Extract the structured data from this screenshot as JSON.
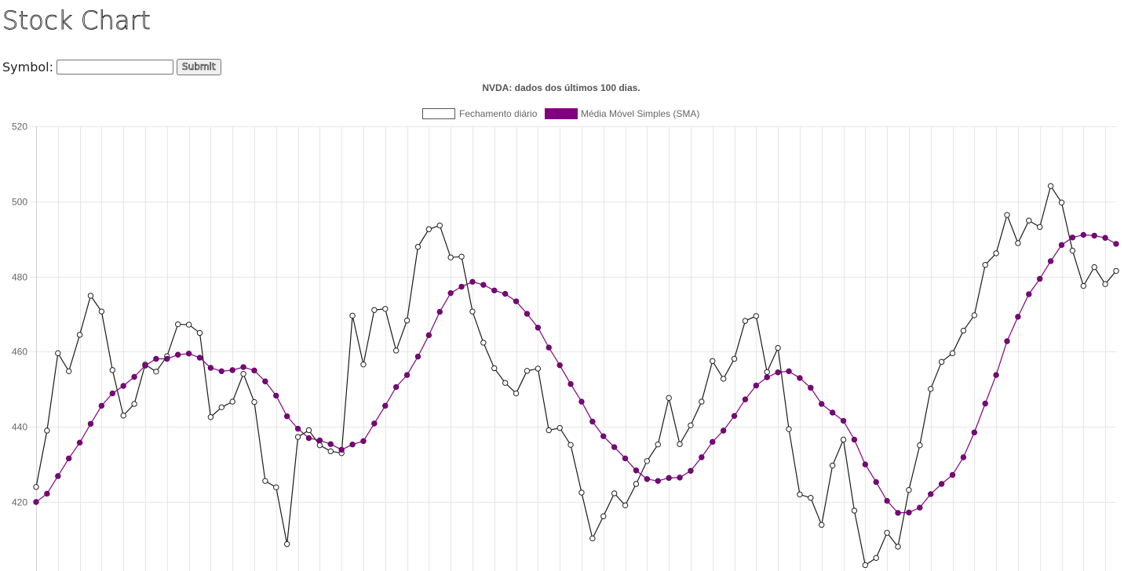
{
  "page": {
    "title": "Stock Chart",
    "form": {
      "symbol_label": "Symbol:",
      "symbol_value": "",
      "symbol_placeholder": "",
      "submit_label": "Submit"
    }
  },
  "chart_data": {
    "type": "line",
    "title": "NVDA: dados dos últimos 100 dias.",
    "legend_position": "top",
    "grid": true,
    "xlabel": "",
    "ylabel": "",
    "ylim": [
      403,
      520
    ],
    "yticks": [
      420,
      440,
      460,
      480,
      500,
      520
    ],
    "points_count": 100,
    "series": [
      {
        "name": "Fechamento diário",
        "line_color": "#1a1a1a",
        "point_fill": "#ffffff",
        "values": [
          424,
          439,
          459.6,
          454.8,
          464.5,
          474.9,
          470.7,
          455.1,
          443,
          446.1,
          456.6,
          454.7,
          458.8,
          467.3,
          467.2,
          465,
          442.6,
          445.2,
          446.7,
          454.1,
          446.6,
          425.6,
          423.9,
          408.8,
          437.3,
          439.1,
          435.1,
          433.5,
          433,
          469.6,
          456.6,
          471.1,
          471.4,
          460.3,
          468.3,
          487.9,
          492.6,
          493.6,
          485.1,
          485.3,
          470.7,
          462.4,
          455.6,
          451.7,
          448.9,
          454.9,
          455.5,
          439.1,
          439.7,
          435.2,
          422.5,
          410.3,
          416.2,
          422.3,
          419.1,
          424.8,
          430.9,
          435.3,
          447.7,
          435.4,
          440.4,
          446.7,
          457.5,
          452.8,
          458.1,
          468.2,
          469.5,
          454.6,
          461,
          439.4,
          422,
          421.1,
          413.9,
          429.7,
          436.6,
          417.7,
          403.2,
          405.1,
          411.8,
          408.1,
          423.2,
          435.1,
          450.1,
          457.3,
          459.6,
          465.6,
          469.7,
          483.1,
          486.2,
          496.4,
          488.9,
          494.9,
          493.2,
          504.1,
          499.7,
          486.9,
          477.5,
          482.5,
          478,
          481.5
        ]
      },
      {
        "name": "Média Móvel Simples (SMA)",
        "line_color": "#800080",
        "point_fill": "#800080",
        "values": [
          420,
          422.2,
          426.9,
          431.6,
          435.8,
          440.8,
          445.6,
          448.9,
          450.9,
          453.3,
          456.3,
          458.1,
          458.1,
          459.2,
          459.5,
          458.4,
          455.7,
          454.8,
          455.1,
          455.9,
          455,
          452.1,
          448.3,
          442.8,
          439.5,
          437,
          436.4,
          435.4,
          433.9,
          435.3,
          436.2,
          440.9,
          445.6,
          450.6,
          453.8,
          458.7,
          464.4,
          470.6,
          475.6,
          477.3,
          478.6,
          477.8,
          476.3,
          475.4,
          473.4,
          470.1,
          466.4,
          461.1,
          456.4,
          451.4,
          446.7,
          441.4,
          437.5,
          434.6,
          431.6,
          428.4,
          426.1,
          425.6,
          426.4,
          426.5,
          428.3,
          431.9,
          436,
          439,
          442.9,
          447.3,
          451,
          453.2,
          454.5,
          454.8,
          453,
          450.4,
          446.1,
          443.8,
          441.6,
          436.6,
          430,
          425.3,
          420.3,
          417.1,
          417.2,
          418.5,
          422.1,
          424.8,
          427.2,
          431.9,
          438.5,
          446.2,
          453.8,
          462.8,
          469.3,
          475.3,
          479.4,
          484.1,
          488.4,
          490.4,
          491.1,
          490.9,
          490.3,
          488.7
        ]
      }
    ]
  }
}
